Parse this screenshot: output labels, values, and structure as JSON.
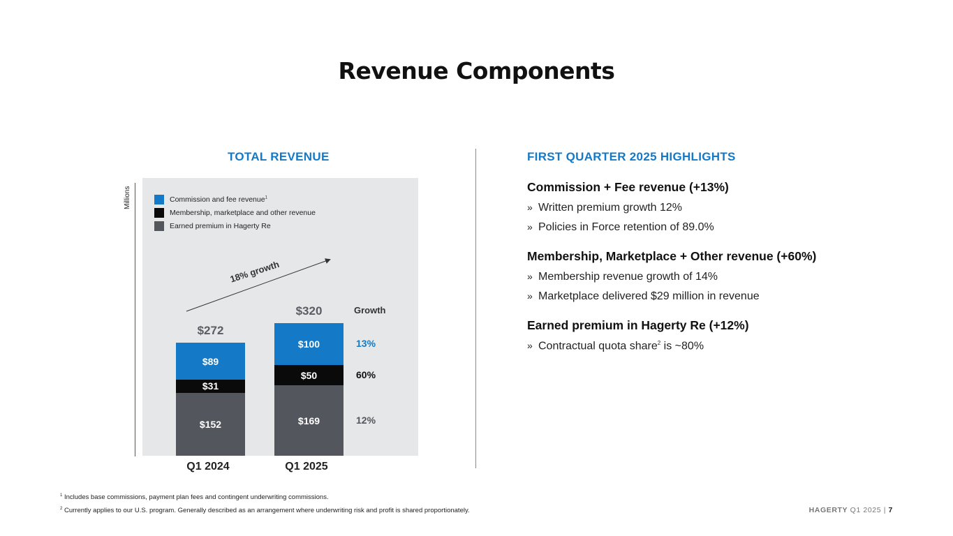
{
  "title": "Revenue Components",
  "left_section": {
    "title": "TOTAL REVENUE",
    "units": "Millions"
  },
  "right_section": {
    "title": "FIRST QUARTER 2025 HIGHLIGHTS",
    "groups": [
      {
        "heading": "Commission + Fee revenue (+13%)",
        "items": [
          {
            "bullet": "»",
            "text": "Written premium growth 12%"
          },
          {
            "bullet": "»",
            "text": "Policies in Force retention of 89.0%"
          }
        ]
      },
      {
        "heading": "Membership, Marketplace + Other revenue (+60%)",
        "items": [
          {
            "bullet": "»",
            "text": "Membership revenue growth of 14%"
          },
          {
            "bullet": "»",
            "text": "Marketplace delivered $29 million in revenue"
          }
        ]
      },
      {
        "heading": "Earned premium in Hagerty Re (+12%)",
        "items": [
          {
            "bullet": "»",
            "text_before": "Contractual quota share",
            "sup": "2",
            "text_after": " is ~80%"
          }
        ]
      }
    ]
  },
  "chart_data": {
    "type": "bar",
    "stacked": true,
    "categories": [
      "Q1 2024",
      "Q1 2025"
    ],
    "series": [
      {
        "name": "Earned premium in Hagerty Re",
        "values": [
          152,
          169
        ],
        "labels": [
          "$152",
          "$169"
        ],
        "color": "#53565c"
      },
      {
        "name": "Membership, marketplace and other revenue",
        "values": [
          31,
          50
        ],
        "labels": [
          "$31",
          "$50"
        ],
        "color": "#0a0a0a"
      },
      {
        "name": "Commission and fee revenue",
        "sup": "1",
        "values": [
          89,
          100
        ],
        "labels": [
          "$89",
          "$100"
        ],
        "color": "#1479c6"
      }
    ],
    "totals": [
      "$272",
      "$320"
    ],
    "growth_header": "Growth",
    "growth": [
      {
        "series": "Commission and fee revenue",
        "label": "13%",
        "color": "#1479c6"
      },
      {
        "series": "Membership, marketplace and other revenue",
        "label": "60%",
        "color": "#111111"
      },
      {
        "series": "Earned premium in Hagerty Re",
        "label": "12%",
        "color": "#53565c"
      }
    ],
    "annotation": "18% growth",
    "ylim": [
      0,
      340
    ],
    "ylabel": "Millions",
    "legend_position": "top-left"
  },
  "footnotes": [
    {
      "num": "1",
      "text": "Includes base commissions, payment plan fees and contingent underwriting commissions."
    },
    {
      "num": "2",
      "text": "Currently applies to our U.S. program. Generally described as an arrangement where underwriting risk and profit is shared proportionately."
    }
  ],
  "footer": {
    "brand": "HAGERTY",
    "period": "Q1 2025",
    "separator": "|",
    "page": "7"
  }
}
